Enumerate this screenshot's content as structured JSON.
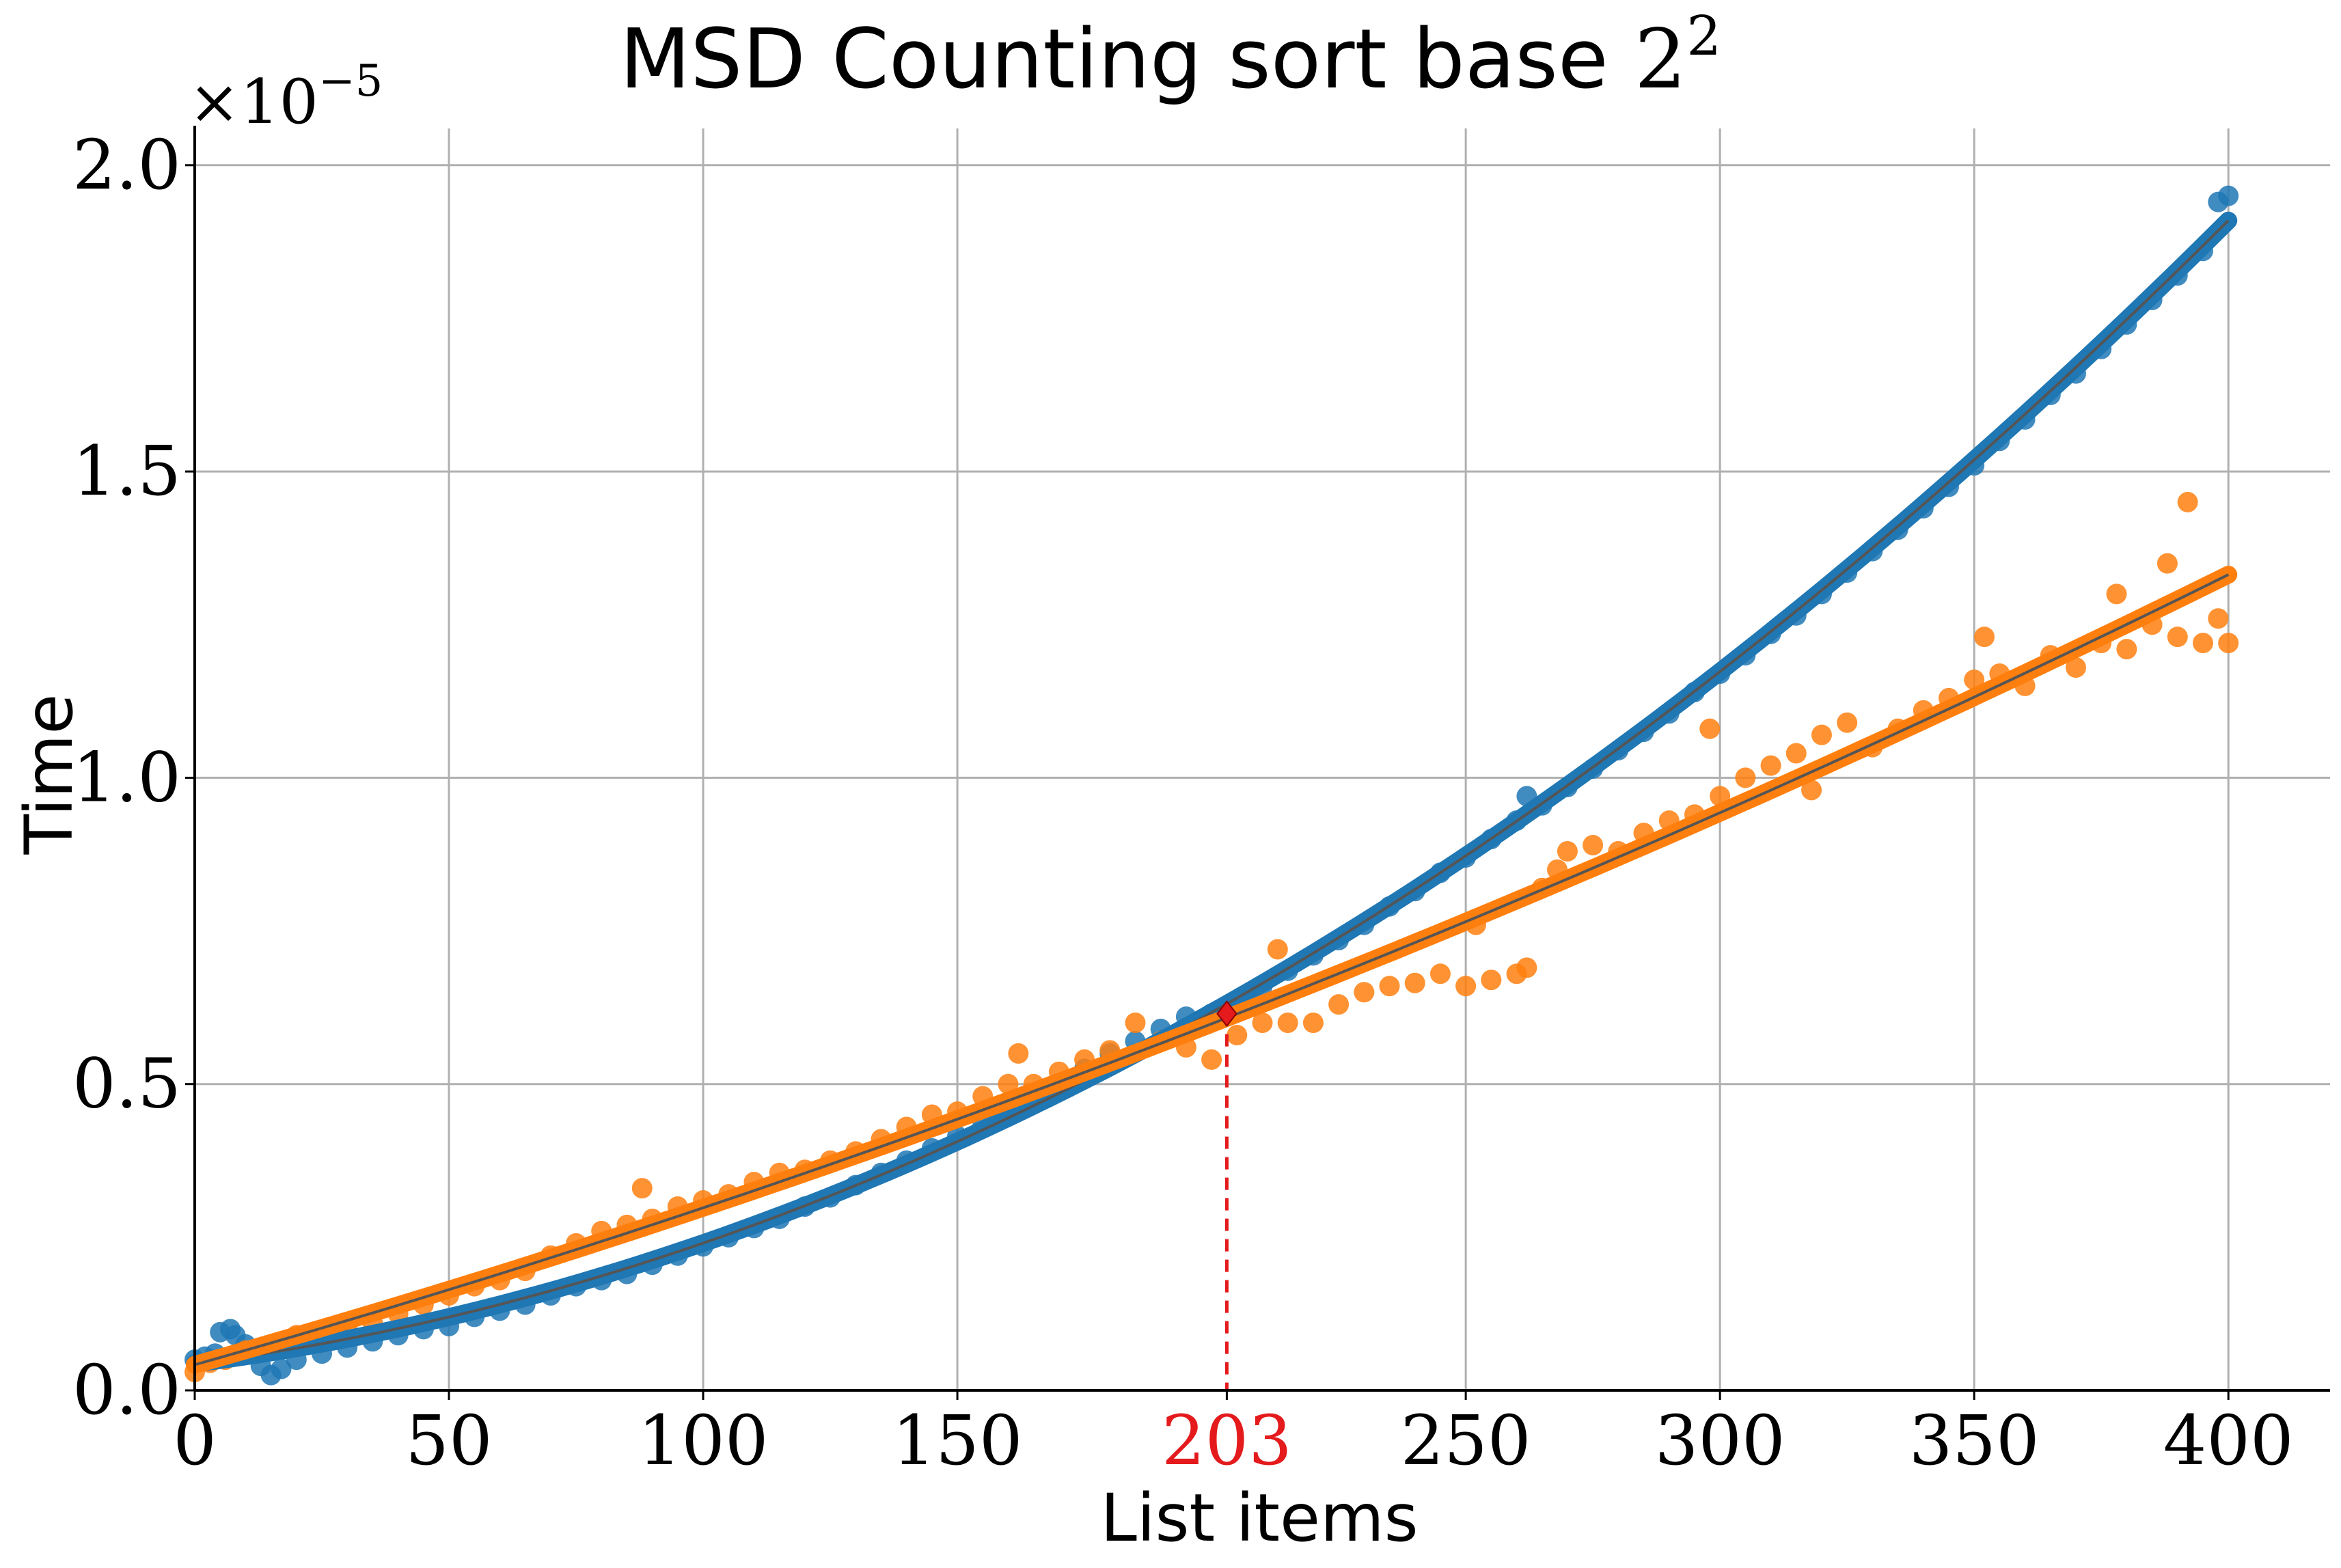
{
  "chart_data": {
    "type": "scatter",
    "title_text": "MSD Counting sort base ",
    "title_base": "2",
    "title_exponent": "2",
    "xlabel": "List items",
    "ylabel": "Time",
    "y_multiplier_prefix": "×10",
    "y_multiplier_exponent": "−5",
    "xlim": [
      0,
      420
    ],
    "ylim": [
      0,
      2.06
    ],
    "x_ticks": [
      0,
      50,
      100,
      150,
      203,
      250,
      300,
      350,
      400
    ],
    "x_tick_labels": [
      "0",
      "50",
      "100",
      "150",
      "203",
      "250",
      "300",
      "350",
      "400"
    ],
    "y_ticks": [
      0.0,
      0.5,
      1.0,
      1.5,
      2.0
    ],
    "y_tick_labels": [
      "0.0",
      "0.5",
      "1.0",
      "1.5",
      "2.0"
    ],
    "grid": true,
    "intersection": {
      "x": 203,
      "y": 0.615,
      "label": "203",
      "color": "#e41a1c"
    },
    "series": [
      {
        "color": "#1f77b4",
        "fit": "quadratic",
        "fit_x_range": [
          0,
          400
        ],
        "points": [
          [
            0,
            0.05
          ],
          [
            2,
            0.055
          ],
          [
            4,
            0.06
          ],
          [
            5,
            0.095
          ],
          [
            7,
            0.1
          ],
          [
            8,
            0.09
          ],
          [
            10,
            0.075
          ],
          [
            12,
            0.06
          ],
          [
            13,
            0.04
          ],
          [
            15,
            0.025
          ],
          [
            17,
            0.035
          ],
          [
            20,
            0.05
          ],
          [
            25,
            0.06
          ],
          [
            30,
            0.07
          ],
          [
            35,
            0.08
          ],
          [
            40,
            0.09
          ],
          [
            45,
            0.1
          ],
          [
            50,
            0.105
          ],
          [
            55,
            0.12
          ],
          [
            60,
            0.13
          ],
          [
            65,
            0.14
          ],
          [
            70,
            0.155
          ],
          [
            75,
            0.17
          ],
          [
            80,
            0.18
          ],
          [
            85,
            0.19
          ],
          [
            90,
            0.205
          ],
          [
            95,
            0.22
          ],
          [
            100,
            0.235
          ],
          [
            105,
            0.25
          ],
          [
            110,
            0.265
          ],
          [
            115,
            0.28
          ],
          [
            120,
            0.3
          ],
          [
            125,
            0.315
          ],
          [
            130,
            0.335
          ],
          [
            135,
            0.355
          ],
          [
            140,
            0.375
          ],
          [
            145,
            0.395
          ],
          [
            150,
            0.415
          ],
          [
            155,
            0.435
          ],
          [
            160,
            0.455
          ],
          [
            165,
            0.48
          ],
          [
            170,
            0.5
          ],
          [
            175,
            0.525
          ],
          [
            180,
            0.55
          ],
          [
            185,
            0.57
          ],
          [
            190,
            0.59
          ],
          [
            195,
            0.61
          ],
          [
            200,
            0.615
          ],
          [
            205,
            0.635
          ],
          [
            210,
            0.66
          ],
          [
            215,
            0.685
          ],
          [
            220,
            0.71
          ],
          [
            225,
            0.735
          ],
          [
            230,
            0.76
          ],
          [
            235,
            0.79
          ],
          [
            240,
            0.815
          ],
          [
            245,
            0.845
          ],
          [
            250,
            0.87
          ],
          [
            255,
            0.9
          ],
          [
            260,
            0.93
          ],
          [
            262,
            0.97
          ],
          [
            265,
            0.955
          ],
          [
            270,
            0.985
          ],
          [
            275,
            1.015
          ],
          [
            280,
            1.045
          ],
          [
            285,
            1.075
          ],
          [
            290,
            1.105
          ],
          [
            295,
            1.14
          ],
          [
            300,
            1.17
          ],
          [
            305,
            1.2
          ],
          [
            310,
            1.235
          ],
          [
            315,
            1.265
          ],
          [
            320,
            1.3
          ],
          [
            325,
            1.335
          ],
          [
            330,
            1.37
          ],
          [
            335,
            1.405
          ],
          [
            340,
            1.44
          ],
          [
            345,
            1.475
          ],
          [
            350,
            1.51
          ],
          [
            355,
            1.55
          ],
          [
            360,
            1.585
          ],
          [
            365,
            1.625
          ],
          [
            370,
            1.66
          ],
          [
            375,
            1.7
          ],
          [
            380,
            1.74
          ],
          [
            385,
            1.78
          ],
          [
            390,
            1.82
          ],
          [
            395,
            1.86
          ],
          [
            398,
            1.94
          ],
          [
            400,
            1.95
          ]
        ]
      },
      {
        "color": "#ff7f0e",
        "fit": "linear-ish",
        "fit_x_range": [
          0,
          400
        ],
        "points": [
          [
            0,
            0.03
          ],
          [
            3,
            0.045
          ],
          [
            6,
            0.05
          ],
          [
            10,
            0.065
          ],
          [
            15,
            0.07
          ],
          [
            20,
            0.09
          ],
          [
            25,
            0.085
          ],
          [
            30,
            0.1
          ],
          [
            35,
            0.11
          ],
          [
            40,
            0.125
          ],
          [
            45,
            0.14
          ],
          [
            50,
            0.155
          ],
          [
            55,
            0.17
          ],
          [
            60,
            0.18
          ],
          [
            65,
            0.195
          ],
          [
            70,
            0.22
          ],
          [
            75,
            0.24
          ],
          [
            80,
            0.26
          ],
          [
            85,
            0.27
          ],
          [
            88,
            0.33
          ],
          [
            90,
            0.28
          ],
          [
            95,
            0.3
          ],
          [
            100,
            0.31
          ],
          [
            105,
            0.32
          ],
          [
            110,
            0.34
          ],
          [
            115,
            0.355
          ],
          [
            120,
            0.36
          ],
          [
            125,
            0.375
          ],
          [
            130,
            0.39
          ],
          [
            135,
            0.41
          ],
          [
            140,
            0.43
          ],
          [
            145,
            0.45
          ],
          [
            150,
            0.455
          ],
          [
            155,
            0.48
          ],
          [
            160,
            0.5
          ],
          [
            162,
            0.55
          ],
          [
            165,
            0.5
          ],
          [
            170,
            0.52
          ],
          [
            175,
            0.54
          ],
          [
            180,
            0.555
          ],
          [
            185,
            0.6
          ],
          [
            190,
            0.57
          ],
          [
            195,
            0.56
          ],
          [
            200,
            0.54
          ],
          [
            205,
            0.58
          ],
          [
            210,
            0.6
          ],
          [
            213,
            0.72
          ],
          [
            215,
            0.6
          ],
          [
            220,
            0.6
          ],
          [
            225,
            0.63
          ],
          [
            230,
            0.65
          ],
          [
            235,
            0.66
          ],
          [
            240,
            0.665
          ],
          [
            245,
            0.68
          ],
          [
            250,
            0.66
          ],
          [
            252,
            0.76
          ],
          [
            255,
            0.67
          ],
          [
            260,
            0.68
          ],
          [
            262,
            0.69
          ],
          [
            265,
            0.82
          ],
          [
            268,
            0.85
          ],
          [
            270,
            0.88
          ],
          [
            275,
            0.89
          ],
          [
            280,
            0.88
          ],
          [
            285,
            0.91
          ],
          [
            290,
            0.93
          ],
          [
            295,
            0.94
          ],
          [
            298,
            1.08
          ],
          [
            300,
            0.97
          ],
          [
            305,
            1.0
          ],
          [
            310,
            1.02
          ],
          [
            315,
            1.04
          ],
          [
            318,
            0.98
          ],
          [
            320,
            1.07
          ],
          [
            325,
            1.09
          ],
          [
            330,
            1.05
          ],
          [
            335,
            1.08
          ],
          [
            340,
            1.11
          ],
          [
            345,
            1.13
          ],
          [
            350,
            1.16
          ],
          [
            352,
            1.23
          ],
          [
            355,
            1.17
          ],
          [
            360,
            1.15
          ],
          [
            365,
            1.2
          ],
          [
            370,
            1.18
          ],
          [
            375,
            1.22
          ],
          [
            378,
            1.3
          ],
          [
            380,
            1.21
          ],
          [
            385,
            1.25
          ],
          [
            388,
            1.35
          ],
          [
            390,
            1.23
          ],
          [
            392,
            1.45
          ],
          [
            395,
            1.22
          ],
          [
            398,
            1.26
          ],
          [
            400,
            1.22
          ]
        ]
      }
    ]
  }
}
